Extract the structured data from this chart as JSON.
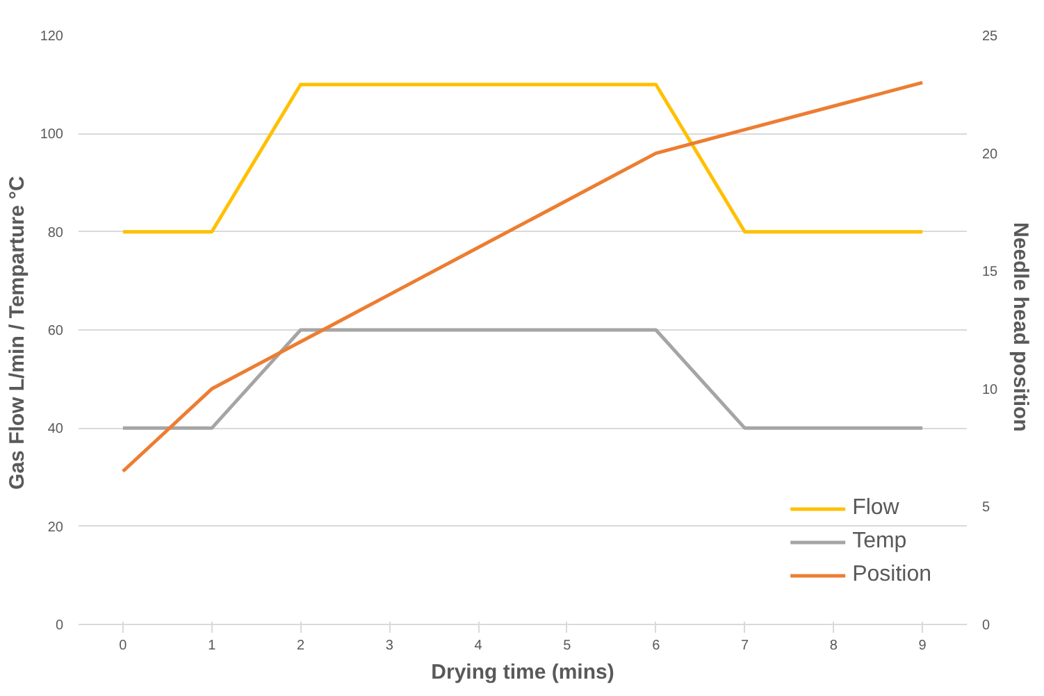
{
  "chart_data": {
    "type": "line",
    "xlabel": "Drying time (mins)",
    "ylabel": "Gas Flow L/min  / Temparture °C",
    "y2label": "Needle head  position",
    "categories": [
      "0",
      "1",
      "2",
      "3",
      "4",
      "5",
      "6",
      "7",
      "8",
      "9"
    ],
    "series": [
      {
        "name": "Flow",
        "color": "#ffc000",
        "values": [
          80,
          80,
          110,
          110,
          110,
          110,
          110,
          80,
          80,
          80
        ]
      },
      {
        "name": "Temp",
        "color": "#a5a5a5",
        "values": [
          40,
          40,
          60,
          60,
          60,
          60,
          60,
          40,
          40,
          40
        ]
      },
      {
        "name": "Position",
        "color": "#ed7d31",
        "axis": "y2",
        "values": [
          6.5,
          10,
          12,
          14,
          16,
          18,
          20,
          21,
          22,
          23
        ]
      }
    ],
    "ylim": [
      0,
      120
    ],
    "yticks": [
      0,
      20,
      40,
      60,
      80,
      100,
      120
    ],
    "y2lim": [
      0,
      25
    ],
    "y2ticks": [
      0,
      5,
      10,
      15,
      20,
      25
    ],
    "grid": "y",
    "legend": "bottom right",
    "marker": "none",
    "line_style": "solid"
  }
}
